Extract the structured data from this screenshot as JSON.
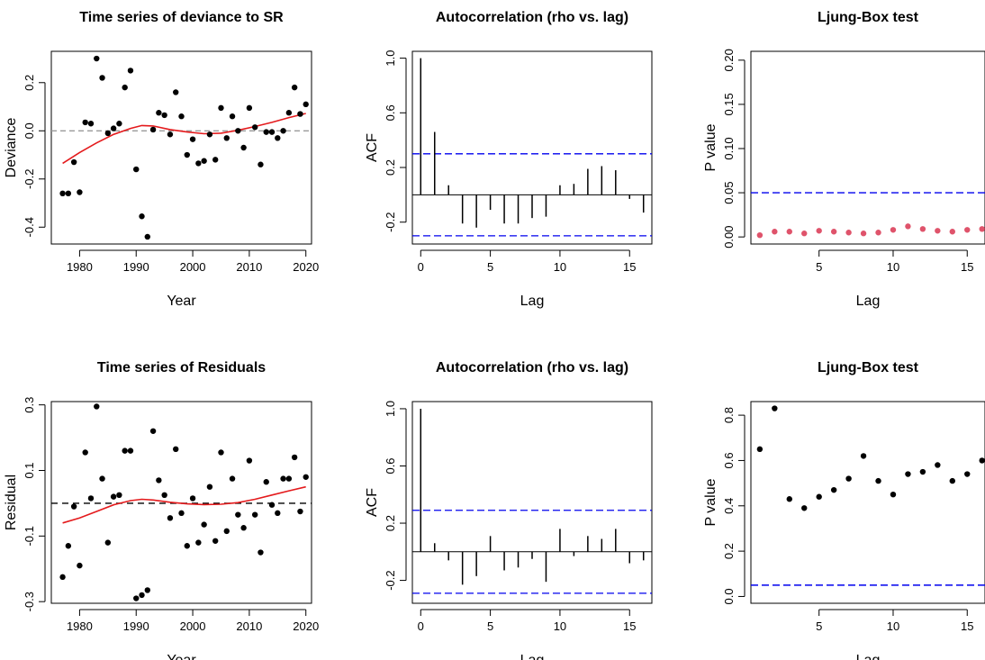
{
  "chart_data": [
    {
      "id": "p1",
      "type": "scatter",
      "title": "Time series of deviance to SR",
      "xlabel": "Year",
      "ylabel": "Deviance",
      "xlim": [
        1975,
        2021
      ],
      "ylim": [
        -0.47,
        0.33
      ],
      "xticks": [
        1980,
        1990,
        2000,
        2010,
        2020
      ],
      "yticks": [
        -0.4,
        -0.2,
        0.0,
        0.2
      ],
      "ytick_labels": [
        "-0.4",
        "-0.2",
        "0.0",
        "0.2"
      ],
      "points": {
        "color": "#000000",
        "x": [
          1977,
          1978,
          1979,
          1980,
          1981,
          1982,
          1983,
          1984,
          1985,
          1986,
          1987,
          1988,
          1989,
          1990,
          1991,
          1992,
          1993,
          1994,
          1995,
          1996,
          1997,
          1998,
          1999,
          2000,
          2001,
          2002,
          2003,
          2004,
          2005,
          2006,
          2007,
          2008,
          2009,
          2010,
          2011,
          2012,
          2013,
          2014,
          2015,
          2016,
          2017,
          2018,
          2019,
          2020
        ],
        "y": [
          -0.26,
          -0.26,
          -0.13,
          -0.255,
          0.035,
          0.03,
          0.3,
          0.22,
          -0.01,
          0.01,
          0.03,
          0.18,
          0.25,
          -0.16,
          -0.355,
          -0.44,
          0.005,
          0.075,
          0.065,
          -0.015,
          0.16,
          0.06,
          -0.1,
          -0.035,
          -0.135,
          -0.125,
          -0.015,
          -0.12,
          0.095,
          -0.03,
          0.06,
          0.0,
          -0.07,
          0.095,
          0.015,
          -0.14,
          -0.005,
          -0.005,
          -0.03,
          0.0,
          0.075,
          0.18,
          0.07,
          0.11
        ]
      },
      "trend": {
        "color": "#e41a1c",
        "x": [
          1977,
          1980,
          1983,
          1986,
          1989,
          1991,
          1993,
          1996,
          1999,
          2002,
          2005,
          2008,
          2011,
          2014,
          2017,
          2020
        ],
        "y": [
          -0.135,
          -0.09,
          -0.05,
          -0.015,
          0.01,
          0.022,
          0.02,
          0.005,
          -0.005,
          -0.012,
          -0.01,
          0.002,
          0.018,
          0.035,
          0.055,
          0.072
        ]
      },
      "hline": {
        "y": 0,
        "color": "#9a9a9a",
        "dash": "6,4"
      }
    },
    {
      "id": "p2",
      "type": "bar",
      "title": "Autocorrelation (rho vs. lag)",
      "xlabel": "Lag",
      "ylabel": "ACF",
      "xlim": [
        -0.6,
        16.6
      ],
      "ylim": [
        -0.36,
        1.05
      ],
      "xticks": [
        0,
        5,
        10,
        15
      ],
      "yticks": [
        -0.2,
        0.2,
        0.6,
        1.0
      ],
      "ytick_labels": [
        "-0.2",
        "0.2",
        "0.6",
        "1.0"
      ],
      "lags": [
        0,
        1,
        2,
        3,
        4,
        5,
        6,
        7,
        8,
        9,
        10,
        11,
        12,
        13,
        14,
        15,
        16
      ],
      "acf": [
        1.0,
        0.46,
        0.07,
        -0.21,
        -0.24,
        -0.11,
        -0.21,
        -0.21,
        -0.17,
        -0.16,
        0.07,
        0.08,
        0.19,
        0.21,
        0.18,
        -0.03,
        -0.13
      ],
      "conf": {
        "upper": 0.3,
        "lower": -0.3,
        "color": "#0000ee",
        "dash": "8,4"
      }
    },
    {
      "id": "p3",
      "type": "scatter",
      "title": "Ljung-Box test",
      "xlabel": "Lag",
      "ylabel": "P value",
      "xlim": [
        0.4,
        16.2
      ],
      "ylim": [
        -0.008,
        0.21
      ],
      "xticks": [
        5,
        10,
        15
      ],
      "yticks": [
        0.0,
        0.05,
        0.1,
        0.15,
        0.2
      ],
      "ytick_labels": [
        "0.00",
        "0.05",
        "0.10",
        "0.15",
        "0.20"
      ],
      "points": {
        "color": "#df536b",
        "x": [
          1,
          2,
          3,
          4,
          5,
          6,
          7,
          8,
          9,
          10,
          11,
          12,
          13,
          14,
          15,
          16
        ],
        "y": [
          0.002,
          0.006,
          0.006,
          0.004,
          0.007,
          0.006,
          0.005,
          0.004,
          0.005,
          0.008,
          0.012,
          0.009,
          0.007,
          0.006,
          0.008,
          0.009
        ]
      },
      "hline": {
        "y": 0.05,
        "color": "#0000ee",
        "dash": "8,4"
      }
    },
    {
      "id": "p4",
      "type": "scatter",
      "title": "Time series of Residuals",
      "xlabel": "Year",
      "ylabel": "Residual",
      "xlim": [
        1975,
        2021
      ],
      "ylim": [
        -0.305,
        0.31
      ],
      "xticks": [
        1980,
        1990,
        2000,
        2010,
        2020
      ],
      "yticks": [
        -0.3,
        -0.1,
        0.1,
        0.3
      ],
      "ytick_labels": [
        "-0.3",
        "-0.1",
        "0.1",
        "0.3"
      ],
      "points": {
        "color": "#000000",
        "x": [
          1977,
          1978,
          1979,
          1980,
          1981,
          1982,
          1983,
          1984,
          1985,
          1986,
          1987,
          1988,
          1989,
          1990,
          1991,
          1992,
          1993,
          1994,
          1995,
          1996,
          1997,
          1998,
          1999,
          2000,
          2001,
          2002,
          2003,
          2004,
          2005,
          2006,
          2007,
          2008,
          2009,
          2010,
          2011,
          2012,
          2013,
          2014,
          2015,
          2016,
          2017,
          2018,
          2019,
          2020
        ],
        "y": [
          -0.225,
          -0.13,
          -0.01,
          -0.19,
          0.155,
          0.015,
          0.295,
          0.075,
          -0.12,
          0.02,
          0.025,
          0.16,
          0.16,
          -0.29,
          -0.28,
          -0.265,
          0.22,
          0.07,
          0.025,
          -0.045,
          0.165,
          -0.03,
          -0.13,
          0.015,
          -0.12,
          -0.065,
          0.05,
          -0.115,
          0.155,
          -0.085,
          0.075,
          -0.035,
          -0.075,
          0.13,
          -0.035,
          -0.15,
          0.065,
          -0.005,
          -0.03,
          0.075,
          0.075,
          0.14,
          -0.025,
          0.08
        ]
      },
      "trend": {
        "color": "#e41a1c",
        "x": [
          1977,
          1980,
          1983,
          1986,
          1989,
          1991,
          1993,
          1996,
          1999,
          2002,
          2005,
          2008,
          2011,
          2014,
          2017,
          2020
        ],
        "y": [
          -0.06,
          -0.045,
          -0.025,
          -0.005,
          0.008,
          0.012,
          0.01,
          0.003,
          -0.002,
          -0.004,
          -0.003,
          0.002,
          0.012,
          0.025,
          0.038,
          0.05
        ]
      },
      "hline": {
        "y": 0,
        "color": "#000000",
        "dash": "7,5"
      }
    },
    {
      "id": "p5",
      "type": "bar",
      "title": "Autocorrelation (rho vs. lag)",
      "xlabel": "Lag",
      "ylabel": "ACF",
      "xlim": [
        -0.6,
        16.6
      ],
      "ylim": [
        -0.36,
        1.05
      ],
      "xticks": [
        0,
        5,
        10,
        15
      ],
      "yticks": [
        -0.2,
        0.2,
        0.6,
        1.0
      ],
      "ytick_labels": [
        "-0.2",
        "0.2",
        "0.6",
        "1.0"
      ],
      "lags": [
        0,
        1,
        2,
        3,
        4,
        5,
        6,
        7,
        8,
        9,
        10,
        11,
        12,
        13,
        14,
        15,
        16
      ],
      "acf": [
        1.0,
        0.06,
        -0.06,
        -0.23,
        -0.17,
        0.11,
        -0.13,
        -0.11,
        -0.05,
        -0.21,
        0.16,
        -0.03,
        0.11,
        0.09,
        0.16,
        -0.08,
        -0.06
      ],
      "conf": {
        "upper": 0.29,
        "lower": -0.29,
        "color": "#0000ee",
        "dash": "8,4"
      }
    },
    {
      "id": "p6",
      "type": "scatter",
      "title": "Ljung-Box test",
      "xlabel": "Lag",
      "ylabel": "P value",
      "xlim": [
        0.4,
        16.2
      ],
      "ylim": [
        -0.03,
        0.86
      ],
      "xticks": [
        5,
        10,
        15
      ],
      "yticks": [
        0.0,
        0.2,
        0.4,
        0.6,
        0.8
      ],
      "ytick_labels": [
        "0.0",
        "0.2",
        "0.4",
        "0.6",
        "0.8"
      ],
      "points": {
        "color": "#000000",
        "x": [
          1,
          2,
          3,
          4,
          5,
          6,
          7,
          8,
          9,
          10,
          11,
          12,
          13,
          14,
          15,
          16
        ],
        "y": [
          0.65,
          0.83,
          0.43,
          0.39,
          0.44,
          0.47,
          0.52,
          0.62,
          0.51,
          0.45,
          0.54,
          0.55,
          0.58,
          0.51,
          0.54,
          0.6
        ]
      },
      "hline": {
        "y": 0.05,
        "color": "#0000ee",
        "dash": "8,4"
      }
    }
  ]
}
